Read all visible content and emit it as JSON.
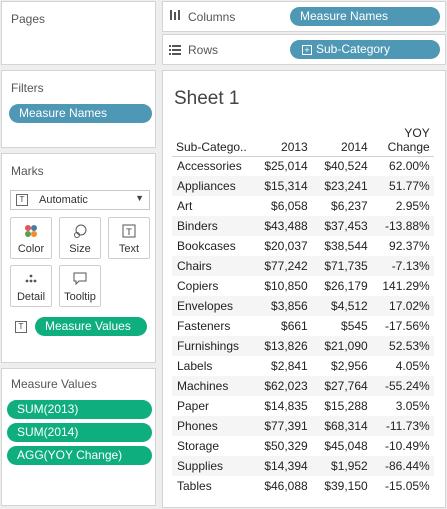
{
  "left": {
    "pages": {
      "title": "Pages"
    },
    "filters": {
      "title": "Filters",
      "pills": [
        "Measure Names"
      ]
    },
    "marks": {
      "title": "Marks",
      "mark_type": "Automatic",
      "cards": [
        {
          "label": "Color",
          "icon": "color-icon"
        },
        {
          "label": "Size",
          "icon": "size-icon"
        },
        {
          "label": "Text",
          "icon": "text-icon"
        },
        {
          "label": "Detail",
          "icon": "detail-icon"
        },
        {
          "label": "Tooltip",
          "icon": "tooltip-icon"
        }
      ],
      "text_pill": "Measure Values"
    },
    "measure_values": {
      "title": "Measure Values",
      "pills": [
        "SUM(2013)",
        "SUM(2014)",
        "AGG(YOY Change)"
      ]
    }
  },
  "shelves": {
    "columns": {
      "label": "Columns",
      "pill": "Measure Names"
    },
    "rows": {
      "label": "Rows",
      "pill": "Sub-Category"
    }
  },
  "sheet": {
    "title": "Sheet 1",
    "headers": [
      "Sub-Catego..",
      "2013",
      "2014",
      "YOY",
      "Change"
    ],
    "rows": [
      [
        "Accessories",
        "$25,014",
        "$40,524",
        "62.00%"
      ],
      [
        "Appliances",
        "$15,314",
        "$23,241",
        "51.77%"
      ],
      [
        "Art",
        "$6,058",
        "$6,237",
        "2.95%"
      ],
      [
        "Binders",
        "$43,488",
        "$37,453",
        "-13.88%"
      ],
      [
        "Bookcases",
        "$20,037",
        "$38,544",
        "92.37%"
      ],
      [
        "Chairs",
        "$77,242",
        "$71,735",
        "-7.13%"
      ],
      [
        "Copiers",
        "$10,850",
        "$26,179",
        "141.29%"
      ],
      [
        "Envelopes",
        "$3,856",
        "$4,512",
        "17.02%"
      ],
      [
        "Fasteners",
        "$661",
        "$545",
        "-17.56%"
      ],
      [
        "Furnishings",
        "$13,826",
        "$21,090",
        "52.53%"
      ],
      [
        "Labels",
        "$2,841",
        "$2,956",
        "4.05%"
      ],
      [
        "Machines",
        "$62,023",
        "$27,764",
        "-55.24%"
      ],
      [
        "Paper",
        "$14,835",
        "$15,288",
        "3.05%"
      ],
      [
        "Phones",
        "$77,391",
        "$68,314",
        "-11.73%"
      ],
      [
        "Storage",
        "$50,329",
        "$45,048",
        "-10.49%"
      ],
      [
        "Supplies",
        "$14,394",
        "$1,952",
        "-86.44%"
      ],
      [
        "Tables",
        "$46,088",
        "$39,150",
        "-15.05%"
      ]
    ]
  },
  "colors": {
    "measure_names_pill": "#4e97b5",
    "measure_values_pill": "#0fae7f"
  }
}
